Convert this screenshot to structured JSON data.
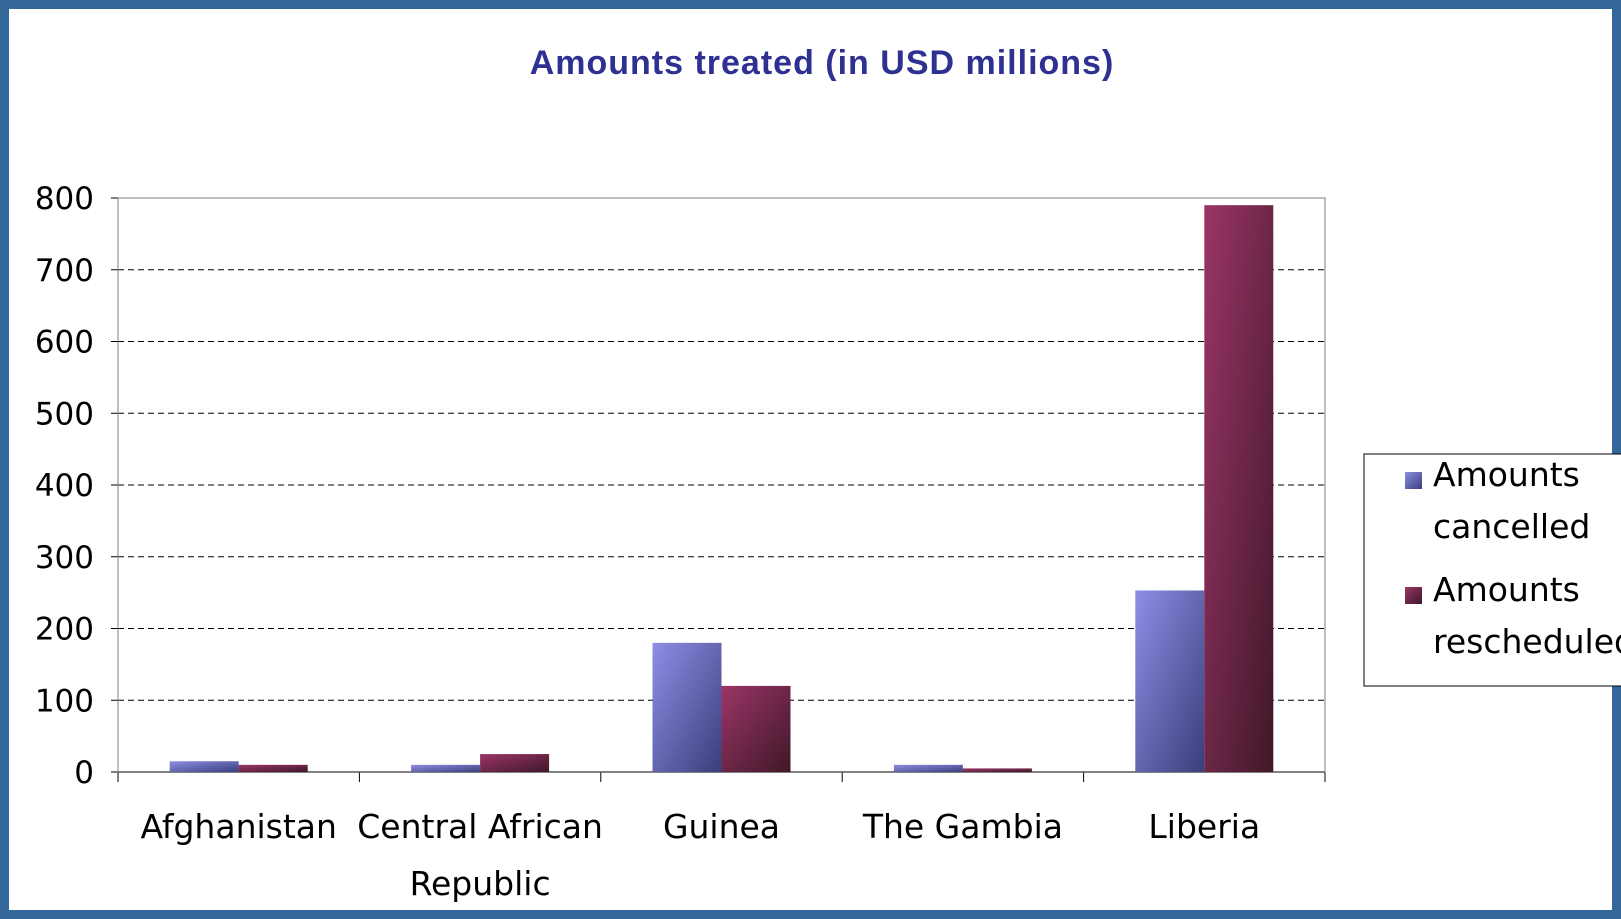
{
  "chart_data": {
    "type": "bar",
    "title": "Amounts treated (in USD millions)",
    "xlabel": "",
    "ylabel": "",
    "ylim": [
      0,
      800
    ],
    "yticks": [
      0,
      100,
      200,
      300,
      400,
      500,
      600,
      700,
      800
    ],
    "grid": "horizontal dashed",
    "legend_position": "right",
    "categories": [
      [
        "Afghanistan"
      ],
      [
        "Central African",
        "Republic"
      ],
      [
        "Guinea"
      ],
      [
        "The Gambia"
      ],
      [
        "Liberia"
      ]
    ],
    "series": [
      {
        "name": [
          "Amounts",
          "cancelled"
        ],
        "values": [
          15,
          10,
          180,
          10,
          253
        ],
        "color": "#8e8ee6",
        "color_dark": "#3a3e7a"
      },
      {
        "name": [
          "Amounts",
          "rescheduled"
        ],
        "values": [
          10,
          25,
          120,
          5,
          790
        ],
        "color": "#9b3567",
        "color_dark": "#3f1828"
      }
    ]
  },
  "colors": {
    "frame": "#336699",
    "title": "#2e3192"
  }
}
